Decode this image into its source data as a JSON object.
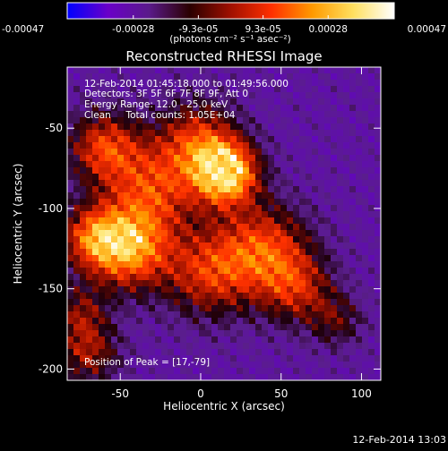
{
  "colorbar": {
    "tick_labels": [
      "-0.00047",
      "-0.00028",
      "-9.3e-05",
      "9.3e-05",
      "0.00028",
      "0.00047"
    ],
    "tick_values": [
      -0.00047,
      -0.00028,
      -9.3e-05,
      9.3e-05,
      0.00028,
      0.00047
    ],
    "range": [
      -0.00047,
      0.00047
    ],
    "unit_label": "(photons cm⁻² s⁻¹ asec⁻²)",
    "colors": [
      "#0000ff",
      "#6a00c8",
      "#5a1a8a",
      "#2a0000",
      "#a01000",
      "#ff3000",
      "#ff9a00",
      "#ffe060",
      "#ffffff"
    ]
  },
  "chart_data": {
    "type": "heatmap",
    "title": "Reconstructed RHESSI Image",
    "xlabel": "Heliocentric X (arcsec)",
    "ylabel": "Heliocentric Y (arcsec)",
    "xlim": [
      -83,
      112
    ],
    "ylim": [
      -207,
      -12
    ],
    "x_ticks": [
      -50,
      0,
      50,
      100
    ],
    "y_ticks": [
      -50,
      -100,
      -150,
      -200
    ],
    "annotations": [
      "12-Feb-2014 01:45:18.000 to 01:49:56.000",
      "Detectors: 3F 5F 6F 7F 8F 9F, Att 0",
      "Energy Range: 12.0 - 25.0 keV",
      "Clean     Total counts: 1.05E+04"
    ],
    "peak_label": "Position of Peak = [17,-79]",
    "peak_position": [
      17,
      -79
    ],
    "sources": [
      {
        "x": 16,
        "y": -78,
        "amp": 1.0,
        "sigma": 14
      },
      {
        "x": -2,
        "y": -58,
        "amp": 0.55,
        "sigma": 18
      },
      {
        "x": -60,
        "y": -62,
        "amp": 0.6,
        "sigma": 16
      },
      {
        "x": -30,
        "y": -88,
        "amp": 0.55,
        "sigma": 20
      },
      {
        "x": -45,
        "y": -125,
        "amp": 0.8,
        "sigma": 18
      },
      {
        "x": -68,
        "y": -118,
        "amp": 0.55,
        "sigma": 14
      },
      {
        "x": 40,
        "y": -125,
        "amp": 0.6,
        "sigma": 20
      },
      {
        "x": 5,
        "y": -140,
        "amp": 0.55,
        "sigma": 20
      },
      {
        "x": 60,
        "y": -150,
        "amp": 0.45,
        "sigma": 16
      },
      {
        "x": -70,
        "y": -190,
        "amp": 0.45,
        "sigma": 14
      },
      {
        "x": -75,
        "y": -165,
        "amp": 0.35,
        "sigma": 12
      },
      {
        "x": 85,
        "y": -170,
        "amp": 0.3,
        "sigma": 12
      }
    ]
  },
  "footer_date": "12-Feb-2014 13:03"
}
